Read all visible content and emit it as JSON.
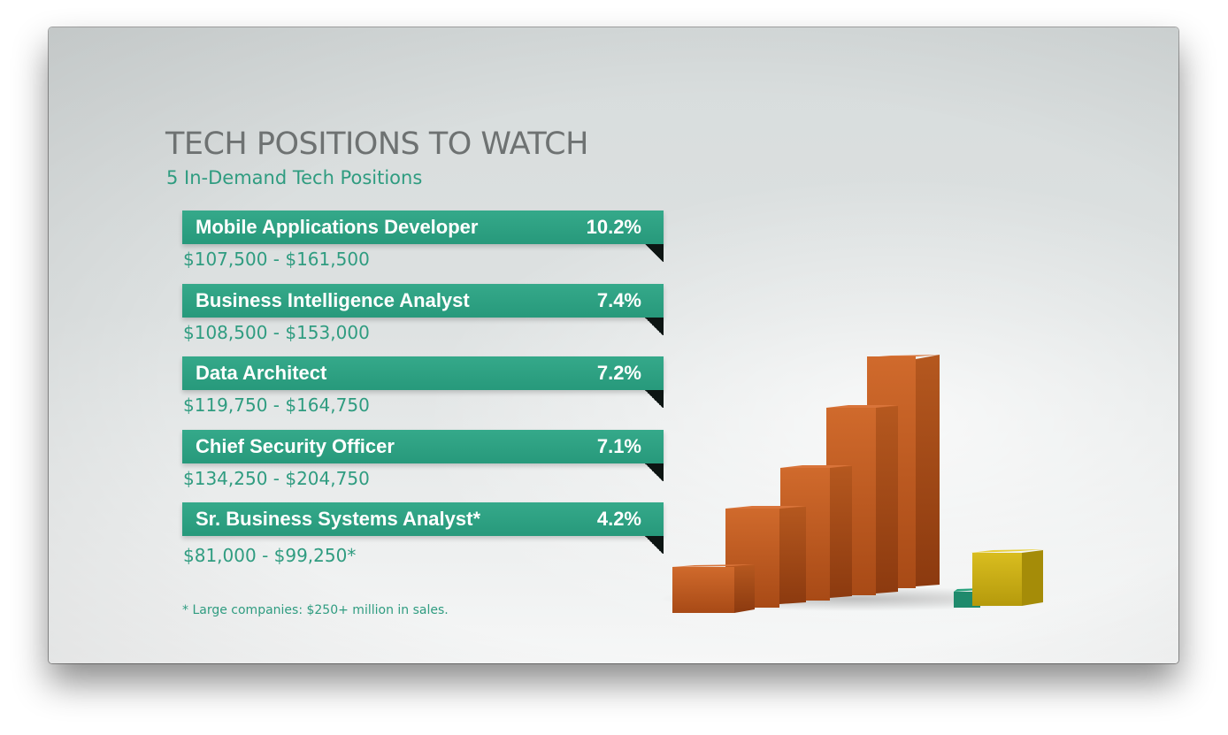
{
  "title": "TECH POSITIONS TO WATCH",
  "subtitle": "5 In-Demand Tech Positions",
  "positions": [
    {
      "name": "Mobile Applications Developer",
      "pct": "10.2%",
      "salary": "$107,500 - $161,500"
    },
    {
      "name": "Business Intelligence Analyst",
      "pct": "7.4%",
      "salary": "$108,500 - $153,000"
    },
    {
      "name": "Data Architect",
      "pct": "7.2%",
      "salary": "$119,750 - $164,750"
    },
    {
      "name": "Chief Security Officer",
      "pct": "7.1%",
      "salary": "$134,250 - $204,750"
    },
    {
      "name": "Sr. Business Systems Analyst*",
      "pct": "4.2%",
      "salary": "$81,000 - $99,250*"
    }
  ],
  "footnote": "* Large companies: $250+ million in sales.",
  "colors": {
    "ribbon": "#2a9c7e",
    "accent_text": "#2f9c80",
    "title_text": "#6e7272",
    "bar_orange": "#c8652a",
    "bar_yellow": "#d2b61c",
    "block_teal": "#1f8a6c"
  }
}
